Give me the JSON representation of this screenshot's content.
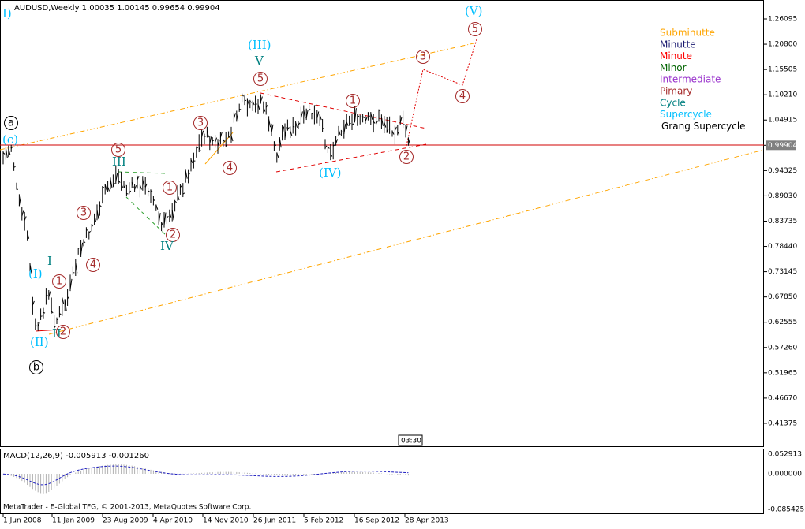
{
  "header": {
    "title": "AUDUSD,Weekly  1.00035 1.00145 0.99654 0.99904"
  },
  "price_axis": [
    "1.26095",
    "1.20800",
    "1.15505",
    "1.10210",
    "1.04915",
    "0.99904",
    "0.94325",
    "0.89030",
    "0.83735",
    "0.78440",
    "0.73145",
    "0.67850",
    "0.62555",
    "0.57260",
    "0.51965",
    "0.46670",
    "0.41375"
  ],
  "macd": {
    "label": "MACD(12,26,9) -0.005913 -0.001260",
    "axis": [
      "0.052913",
      "0.000000",
      "-0.085425"
    ]
  },
  "time_axis": [
    "1 Jun 2008",
    "11 Jan 2009",
    "23 Aug 2009",
    "4 Apr 2010",
    "14 Nov 2010",
    "26 Jun 2011",
    "5 Feb 2012",
    "16 Sep 2012",
    "28 Apr 2013"
  ],
  "time_marker": "03:30",
  "footer": "MetaTrader - E-Global TFG, © 2001-2013, MetaQuotes Software Corp.",
  "legend": [
    {
      "name": "Subminutte",
      "color": "#ffa500"
    },
    {
      "name": "Minutte",
      "color": "#191970"
    },
    {
      "name": "Minute",
      "color": "#ff0000"
    },
    {
      "name": "Minor",
      "color": "#006400"
    },
    {
      "name": "Intermediate",
      "color": "#9932cc"
    },
    {
      "name": "Pimary",
      "color": "#a52a2a"
    },
    {
      "name": "Cycle",
      "color": "#008080"
    },
    {
      "name": "Supercycle",
      "color": "#00bfff"
    },
    {
      "name": "Grang Supercycle",
      "color": "#000000"
    }
  ],
  "waves": [
    "I)",
    "a",
    "(c)",
    "b",
    "(I)",
    "(II)",
    "I",
    "II",
    "1",
    "2",
    "3",
    "4",
    "5",
    "III",
    "1",
    "2",
    "IV",
    "3",
    "4",
    "(III)",
    "V",
    "5",
    "1",
    "(IV)",
    "2",
    "3",
    "4",
    "5",
    "(V)"
  ]
}
